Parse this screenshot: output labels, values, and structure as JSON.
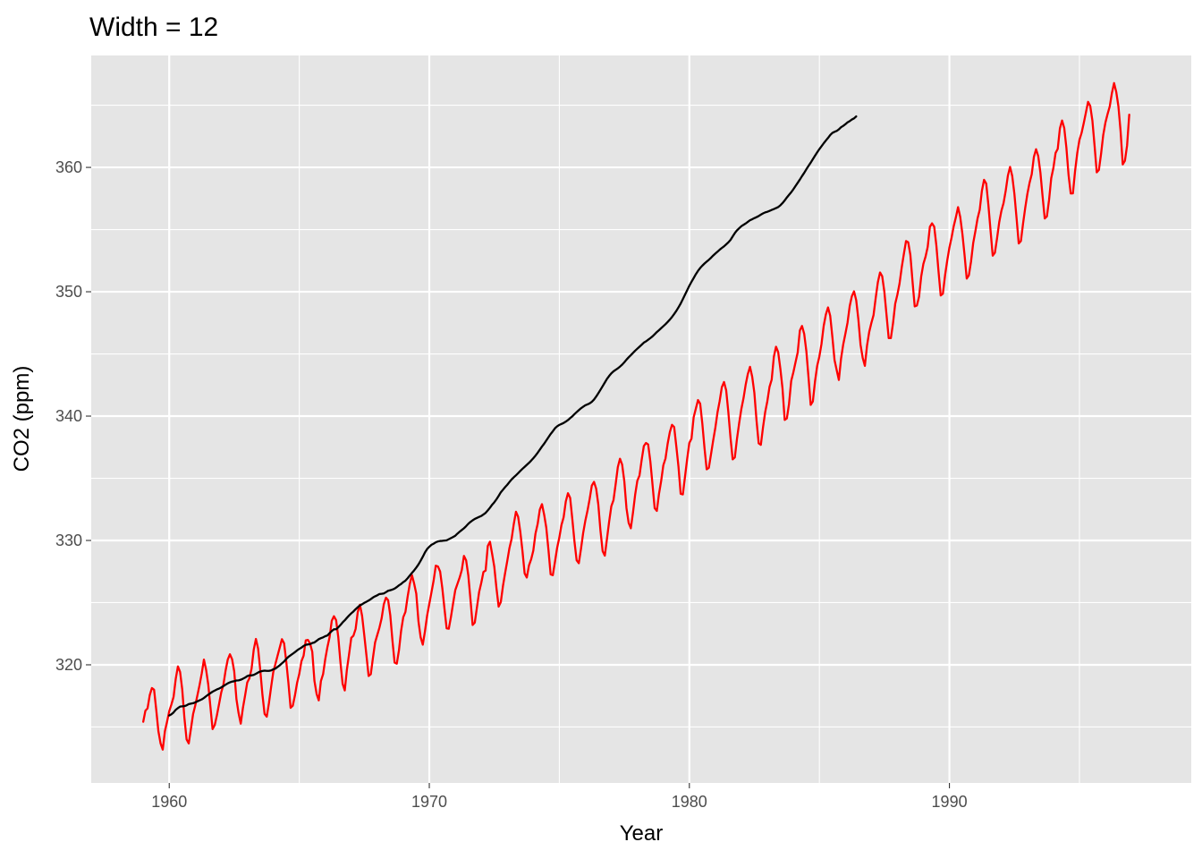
{
  "chart_data": {
    "type": "line",
    "title": "Width = 12",
    "xlabel": "Year",
    "ylabel": "CO2 (ppm)",
    "xlim": [
      1957.0,
      1999.3
    ],
    "ylim": [
      310.5,
      369.0
    ],
    "x_ticks": [
      1960,
      1970,
      1980,
      1990
    ],
    "x_tick_labels": [
      "1960",
      "1970",
      "1980",
      "1990"
    ],
    "y_ticks": [
      320,
      330,
      340,
      350,
      360
    ],
    "y_tick_labels": [
      "320",
      "330",
      "340",
      "350",
      "360"
    ],
    "grid": true,
    "legend": "none",
    "background": "#e5e5e5",
    "series": [
      {
        "color": "#ff0000",
        "x_start": 1959.0,
        "x_step": 0.08333,
        "values": [
          315.42,
          316.31,
          316.5,
          317.56,
          318.13,
          318.0,
          316.39,
          314.65,
          313.68,
          313.18,
          314.66,
          315.43,
          316.27,
          316.81,
          317.42,
          318.87,
          319.87,
          319.43,
          318.01,
          315.74,
          314.0,
          313.68,
          314.84,
          316.03,
          316.73,
          317.54,
          318.38,
          319.31,
          320.42,
          319.61,
          318.42,
          316.63,
          314.83,
          315.16,
          315.94,
          316.85,
          317.78,
          318.4,
          319.53,
          320.42,
          320.85,
          320.45,
          319.45,
          317.25,
          316.11,
          315.27,
          316.53,
          317.53,
          318.58,
          318.92,
          319.7,
          321.22,
          322.08,
          321.31,
          319.58,
          317.61,
          316.05,
          315.83,
          316.91,
          318.2,
          319.41,
          320.07,
          320.74,
          321.4,
          322.06,
          321.73,
          320.27,
          318.54,
          316.54,
          316.71,
          317.53,
          318.55,
          319.27,
          320.28,
          320.73,
          321.97,
          322.0,
          321.71,
          321.05,
          318.71,
          317.66,
          317.14,
          318.7,
          319.25,
          320.46,
          321.43,
          322.23,
          323.54,
          323.91,
          323.59,
          322.24,
          320.2,
          318.48,
          317.94,
          319.63,
          320.87,
          322.17,
          322.34,
          322.88,
          324.25,
          324.83,
          323.93,
          322.38,
          320.76,
          319.1,
          319.24,
          320.56,
          321.8,
          322.4,
          322.99,
          323.73,
          324.86,
          325.4,
          325.2,
          323.98,
          321.95,
          320.18,
          320.09,
          321.16,
          322.74,
          323.83,
          324.26,
          325.47,
          326.5,
          327.21,
          326.54,
          325.72,
          323.5,
          322.22,
          321.62,
          322.69,
          323.95,
          324.89,
          325.82,
          326.77,
          327.97,
          327.91,
          327.5,
          326.18,
          324.53,
          322.93,
          322.9,
          323.85,
          324.96,
          326.01,
          326.51,
          327.01,
          327.62,
          328.76,
          328.4,
          327.2,
          325.27,
          323.2,
          323.4,
          324.63,
          325.85,
          326.6,
          327.47,
          327.58,
          329.56,
          329.9,
          328.92,
          327.88,
          326.16,
          324.68,
          325.04,
          326.34,
          327.39,
          328.37,
          329.4,
          330.14,
          331.33,
          332.31,
          331.9,
          330.7,
          329.15,
          327.35,
          327.02,
          327.99,
          328.48,
          329.18,
          330.55,
          331.32,
          332.48,
          332.92,
          332.08,
          331.01,
          329.23,
          327.27,
          327.21,
          328.29,
          329.41,
          330.23,
          331.25,
          331.87,
          333.14,
          333.8,
          333.43,
          331.73,
          329.9,
          328.4,
          328.17,
          329.32,
          330.59,
          331.58,
          332.39,
          333.33,
          334.41,
          334.71,
          334.17,
          332.89,
          330.77,
          329.14,
          328.78,
          330.14,
          331.52,
          332.75,
          333.24,
          334.53,
          335.9,
          336.57,
          336.1,
          334.76,
          332.59,
          331.42,
          330.98,
          332.24,
          333.68,
          334.8,
          335.22,
          336.47,
          337.59,
          337.84,
          337.72,
          336.37,
          334.51,
          332.6,
          332.38,
          333.75,
          334.78,
          336.05,
          336.59,
          337.79,
          338.71,
          339.3,
          339.12,
          337.56,
          335.92,
          333.75,
          333.7,
          335.12,
          336.56,
          337.84,
          338.19,
          339.91,
          340.6,
          341.29,
          341.0,
          339.39,
          337.43,
          335.72,
          335.84,
          336.93,
          338.04,
          339.06,
          340.3,
          341.21,
          342.33,
          342.74,
          342.08,
          340.32,
          338.26,
          336.52,
          336.68,
          338.19,
          339.44,
          340.57,
          341.44,
          342.53,
          343.39,
          343.96,
          343.18,
          341.88,
          339.65,
          337.81,
          337.69,
          339.09,
          340.32,
          341.2,
          342.35,
          342.93,
          344.77,
          345.58,
          345.14,
          343.81,
          342.21,
          339.69,
          339.82,
          340.98,
          342.82,
          343.52,
          344.33,
          345.11,
          346.88,
          347.25,
          346.62,
          345.22,
          343.11,
          340.9,
          341.18,
          342.8,
          344.04,
          344.79,
          345.82,
          347.25,
          348.17,
          348.74,
          348.07,
          346.38,
          344.51,
          343.7,
          342.91,
          344.61,
          345.75,
          346.61,
          347.51,
          348.84,
          349.64,
          350.03,
          349.32,
          347.78,
          345.74,
          344.68,
          344.04,
          345.67,
          346.76,
          347.49,
          348.12,
          349.5,
          350.77,
          351.55,
          351.25,
          349.99,
          348.13,
          346.27,
          346.27,
          347.48,
          349.03,
          349.76,
          350.66,
          351.95,
          353.04,
          354.08,
          353.98,
          352.96,
          350.82,
          348.82,
          348.89,
          349.6,
          351.23,
          352.24,
          352.82,
          353.61,
          355.22,
          355.5,
          355.23,
          353.71,
          351.62,
          349.7,
          349.84,
          351.31,
          352.5,
          353.54,
          354.35,
          355.27,
          355.99,
          356.8,
          356.02,
          354.66,
          352.96,
          351.06,
          351.33,
          352.44,
          353.92,
          354.87,
          355.89,
          356.59,
          358.11,
          359.0,
          358.7,
          356.98,
          354.91,
          352.9,
          353.14,
          354.3,
          355.59,
          356.5,
          357.13,
          358.13,
          359.34,
          360.04,
          359.31,
          357.88,
          355.93,
          353.88,
          354.08,
          355.48,
          356.75,
          357.88,
          358.76,
          359.45,
          360.85,
          361.46,
          360.91,
          359.58,
          357.69,
          355.89,
          356.06,
          357.39,
          359.13,
          359.96,
          361.16,
          361.49,
          363.14,
          363.77,
          363.17,
          361.58,
          359.38,
          357.9,
          357.91,
          359.71,
          361.14,
          362.2,
          362.77,
          363.56,
          364.41,
          365.27,
          364.94,
          363.75,
          361.74,
          359.6,
          359.8,
          361.09,
          362.61,
          363.6,
          364.29,
          364.9,
          365.98,
          366.78,
          366.07,
          364.91,
          362.92,
          360.24,
          360.53,
          361.76,
          364.24
        ]
      },
      {
        "color": "#000000",
        "x_start": 1960.0,
        "x_step": 0.08333,
        "values": [
          315.92,
          316.02,
          316.17,
          316.38,
          316.52,
          316.64,
          316.66,
          316.68,
          316.74,
          316.84,
          316.88,
          316.91,
          316.98,
          317.06,
          317.14,
          317.22,
          317.33,
          317.47,
          317.6,
          317.72,
          317.84,
          317.93,
          318.02,
          318.09,
          318.18,
          318.29,
          318.4,
          318.51,
          318.59,
          318.65,
          318.68,
          318.74,
          318.75,
          318.8,
          318.88,
          318.97,
          319.09,
          319.15,
          319.15,
          319.19,
          319.28,
          319.38,
          319.46,
          319.5,
          319.53,
          319.51,
          319.51,
          319.55,
          319.64,
          319.7,
          319.83,
          319.96,
          320.12,
          320.27,
          320.47,
          320.64,
          320.77,
          320.89,
          321.02,
          321.16,
          321.28,
          321.38,
          321.52,
          321.61,
          321.64,
          321.66,
          321.75,
          321.8,
          321.93,
          322.06,
          322.14,
          322.21,
          322.3,
          322.36,
          322.55,
          322.71,
          322.86,
          322.86,
          323.01,
          323.2,
          323.41,
          323.58,
          323.78,
          323.97,
          324.14,
          324.29,
          324.47,
          324.63,
          324.78,
          324.87,
          324.98,
          325.07,
          325.17,
          325.28,
          325.41,
          325.51,
          325.59,
          325.69,
          325.71,
          325.74,
          325.84,
          325.95,
          326.0,
          326.05,
          326.13,
          326.25,
          326.39,
          326.5,
          326.65,
          326.77,
          326.96,
          327.18,
          327.39,
          327.59,
          327.82,
          328.07,
          328.37,
          328.69,
          329.04,
          329.31,
          329.49,
          329.65,
          329.74,
          329.85,
          329.92,
          329.96,
          329.97,
          329.99,
          330.01,
          330.1,
          330.19,
          330.28,
          330.38,
          330.55,
          330.7,
          330.84,
          330.98,
          331.15,
          331.34,
          331.49,
          331.62,
          331.73,
          331.81,
          331.89,
          331.97,
          332.09,
          332.22,
          332.42,
          332.63,
          332.87,
          333.07,
          333.31,
          333.58,
          333.87,
          334.08,
          334.29,
          334.48,
          334.7,
          334.91,
          335.08,
          335.24,
          335.41,
          335.59,
          335.76,
          335.92,
          336.08,
          336.24,
          336.42,
          336.61,
          336.82,
          337.05,
          337.3,
          337.55,
          337.78,
          338.04,
          338.3,
          338.56,
          338.78,
          339.02,
          339.18,
          339.29,
          339.37,
          339.45,
          339.56,
          339.68,
          339.84,
          339.98,
          340.16,
          340.32,
          340.48,
          340.63,
          340.75,
          340.87,
          340.94,
          341.02,
          341.15,
          341.33,
          341.57,
          341.84,
          342.12,
          342.41,
          342.7,
          342.99,
          343.23,
          343.44,
          343.6,
          343.72,
          343.84,
          343.98,
          344.14,
          344.33,
          344.54,
          344.73,
          344.9,
          345.08,
          345.26,
          345.42,
          345.58,
          345.74,
          345.91,
          346.01,
          346.14,
          346.27,
          346.41,
          346.58,
          346.76,
          346.91,
          347.07,
          347.23,
          347.39,
          347.57,
          347.76,
          347.97,
          348.21,
          348.46,
          348.75,
          349.05,
          349.4,
          349.76,
          350.12,
          350.48,
          350.8,
          351.1,
          351.41,
          351.68,
          351.91,
          352.1,
          352.27,
          352.42,
          352.57,
          352.73,
          352.91,
          353.07,
          353.22,
          353.38,
          353.52,
          353.65,
          353.81,
          353.97,
          354.17,
          354.45,
          354.72,
          354.94,
          355.11,
          355.27,
          355.38,
          355.49,
          355.62,
          355.75,
          355.83,
          355.92,
          356.0,
          356.09,
          356.2,
          356.3,
          356.38,
          356.43,
          356.5,
          356.58,
          356.65,
          356.73,
          356.81,
          356.95,
          357.13,
          357.34,
          357.58,
          357.79,
          358.0,
          358.24,
          358.5,
          358.76,
          359.02,
          359.3,
          359.56,
          359.85,
          360.12,
          360.38,
          360.66,
          360.94,
          361.21,
          361.47,
          361.7,
          361.94,
          362.16,
          362.37,
          362.6,
          362.77,
          362.86,
          362.93,
          363.06,
          363.23,
          363.34,
          363.47,
          363.62,
          363.72,
          363.85,
          363.94,
          364.1
        ]
      }
    ]
  }
}
